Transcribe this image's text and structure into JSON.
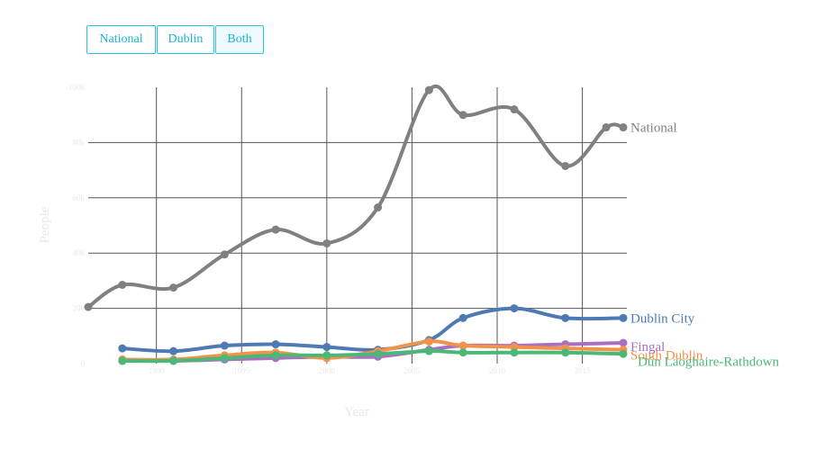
{
  "toggle": {
    "buttons": [
      {
        "label": "National",
        "active": false
      },
      {
        "label": "Dublin",
        "active": false
      },
      {
        "label": "Both",
        "active": true
      }
    ]
  },
  "chart_data": {
    "type": "line",
    "title": "",
    "xlabel": "Year",
    "ylabel": "People",
    "xlim": [
      1986,
      2017.4
    ],
    "ylim": [
      0,
      100
    ],
    "x_ticks": [
      1990,
      1995,
      2000,
      2005,
      2010,
      2015
    ],
    "y_ticks": [
      0,
      20,
      40,
      60,
      80,
      100
    ],
    "y_tick_labels": [
      "0",
      "20k",
      "40k",
      "60k",
      "80k",
      "100k"
    ],
    "grid": true,
    "legend": "end-of-line labels",
    "series": [
      {
        "name": "National",
        "color": "#808080",
        "x": [
          1986,
          1988,
          1991,
          1994,
          1997,
          2000,
          2003,
          2006,
          2008,
          2011,
          2014,
          2016.4,
          2017.4
        ],
        "y": [
          20.5,
          28.5,
          27.5,
          39.5,
          48.5,
          43.5,
          56.5,
          99,
          90,
          92,
          71.5,
          85.5,
          85.5
        ]
      },
      {
        "name": "Dublin City",
        "color": "#4e79b3",
        "x": [
          1988,
          1991,
          1994,
          1997,
          2000,
          2003,
          2006,
          2008,
          2011,
          2014,
          2017.4
        ],
        "y": [
          5.5,
          4.5,
          6.5,
          7,
          6,
          5,
          8.5,
          16.5,
          20,
          16.5,
          16.5
        ]
      },
      {
        "name": "Fingal",
        "color": "#a970c2",
        "x": [
          1988,
          1991,
          1994,
          1997,
          2000,
          2003,
          2006,
          2008,
          2011,
          2014,
          2017.4
        ],
        "y": [
          1,
          1,
          1.5,
          2,
          2.5,
          2.5,
          5,
          6.5,
          6.5,
          7,
          7.5
        ]
      },
      {
        "name": "South Dublin",
        "color": "#f3924a",
        "x": [
          1988,
          1991,
          1994,
          1997,
          2000,
          2003,
          2006,
          2008,
          2011,
          2014,
          2017.4
        ],
        "y": [
          1.5,
          1.5,
          3,
          4,
          2,
          4.5,
          8,
          6.5,
          6,
          5.5,
          5
        ],
        "label": "South Dublin"
      },
      {
        "name": "Dún Laoghaire-Rathdown",
        "color": "#4cb877",
        "x": [
          1988,
          1991,
          1994,
          1997,
          2000,
          2003,
          2006,
          2008,
          2011,
          2014,
          2017.4
        ],
        "y": [
          1,
          1,
          2,
          3,
          3,
          3.5,
          4.5,
          4,
          4,
          4,
          3.5
        ]
      }
    ]
  }
}
